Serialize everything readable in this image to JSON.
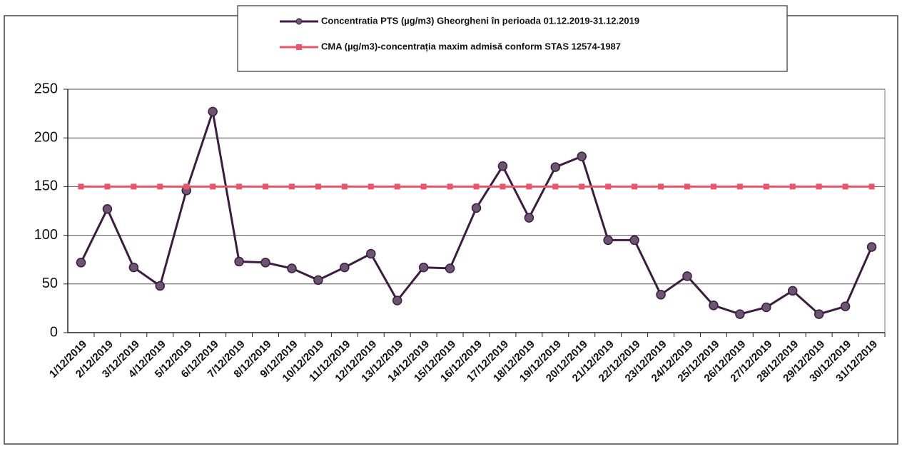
{
  "chart_data": {
    "type": "line",
    "categories": [
      "1/12/2019",
      "2/12/2019",
      "3/12/2019",
      "4/12/2019",
      "5/12/2019",
      "6/12/2019",
      "7/12/2019",
      "8/12/2019",
      "9/12/2019",
      "10/12/2019",
      "11/12/2019",
      "12/12/2019",
      "13/12/2019",
      "14/12/2019",
      "15/12/2019",
      "16/12/2019",
      "17/12/2019",
      "18/12/2019",
      "19/12/2019",
      "20/12/2019",
      "21/12/2019",
      "22/12/2019",
      "23/12/2019",
      "24/12/2019",
      "25/12/2019",
      "26/12/2019",
      "27/12/2019",
      "28/12/2019",
      "29/12/2019",
      "30/12/2019",
      "31/12/2019"
    ],
    "series": [
      {
        "name": "Concentratia PTS (µg/m3) Gheorgheni în perioada 01.12.2019-31.12.2019",
        "color": "#3b1d3f",
        "marker": "circle",
        "values": [
          72,
          127,
          67,
          48,
          146,
          227,
          73,
          72,
          66,
          54,
          67,
          81,
          33,
          67,
          66,
          128,
          171,
          118,
          170,
          181,
          95,
          95,
          39,
          58,
          28,
          19,
          26,
          43,
          19,
          27,
          88
        ]
      },
      {
        "name": "CMA (µg/m3)-concentrația maxim admisă conform STAS 12574-1987",
        "color": "#e8566c",
        "marker": "square",
        "values": [
          150,
          150,
          150,
          150,
          150,
          150,
          150,
          150,
          150,
          150,
          150,
          150,
          150,
          150,
          150,
          150,
          150,
          150,
          150,
          150,
          150,
          150,
          150,
          150,
          150,
          150,
          150,
          150,
          150,
          150,
          150
        ]
      }
    ],
    "ylim": [
      0,
      250
    ],
    "yticks": [
      0,
      50,
      100,
      150,
      200,
      250
    ],
    "grid": true,
    "legend": "top"
  }
}
